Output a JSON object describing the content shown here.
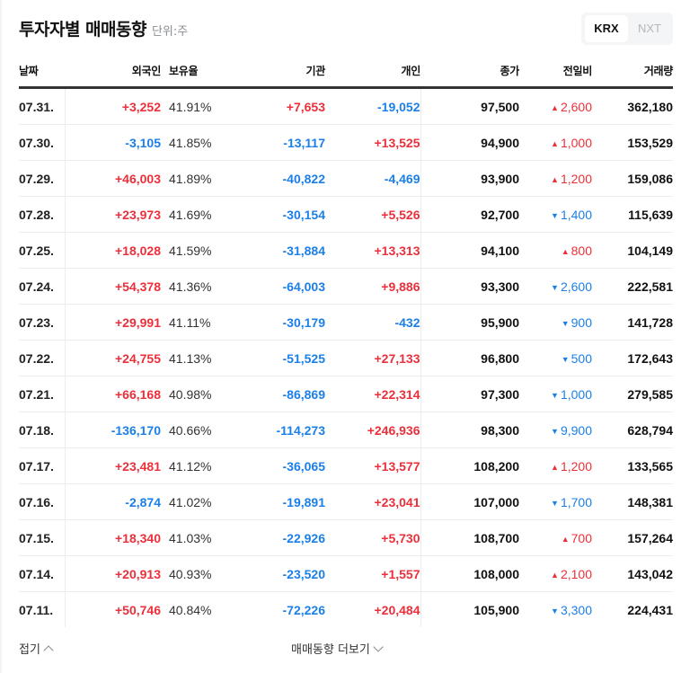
{
  "header": {
    "title": "투자자별 매매동향",
    "unit": "단위:주",
    "toggle": [
      {
        "label": "KRX",
        "active": true
      },
      {
        "label": "NXT",
        "active": false
      }
    ]
  },
  "table": {
    "columns": [
      "날짜",
      "외국인",
      "보유율",
      "기관",
      "개인",
      "종가",
      "전일비",
      "거래량"
    ],
    "rows": [
      {
        "date": "07.31.",
        "foreign": "+3,252",
        "rate": "41.91%",
        "inst": "+7,653",
        "indiv": "-19,052",
        "close": "97,500",
        "dir": "up",
        "change": "2,600",
        "volume": "362,180"
      },
      {
        "date": "07.30.",
        "foreign": "-3,105",
        "rate": "41.85%",
        "inst": "-13,117",
        "indiv": "+13,525",
        "close": "94,900",
        "dir": "up",
        "change": "1,000",
        "volume": "153,529"
      },
      {
        "date": "07.29.",
        "foreign": "+46,003",
        "rate": "41.89%",
        "inst": "-40,822",
        "indiv": "-4,469",
        "close": "93,900",
        "dir": "up",
        "change": "1,200",
        "volume": "159,086"
      },
      {
        "date": "07.28.",
        "foreign": "+23,973",
        "rate": "41.69%",
        "inst": "-30,154",
        "indiv": "+5,526",
        "close": "92,700",
        "dir": "down",
        "change": "1,400",
        "volume": "115,639"
      },
      {
        "date": "07.25.",
        "foreign": "+18,028",
        "rate": "41.59%",
        "inst": "-31,884",
        "indiv": "+13,313",
        "close": "94,100",
        "dir": "up",
        "change": "800",
        "volume": "104,149"
      },
      {
        "date": "07.24.",
        "foreign": "+54,378",
        "rate": "41.36%",
        "inst": "-64,003",
        "indiv": "+9,886",
        "close": "93,300",
        "dir": "down",
        "change": "2,600",
        "volume": "222,581"
      },
      {
        "date": "07.23.",
        "foreign": "+29,991",
        "rate": "41.11%",
        "inst": "-30,179",
        "indiv": "-432",
        "close": "95,900",
        "dir": "down",
        "change": "900",
        "volume": "141,728"
      },
      {
        "date": "07.22.",
        "foreign": "+24,755",
        "rate": "41.13%",
        "inst": "-51,525",
        "indiv": "+27,133",
        "close": "96,800",
        "dir": "down",
        "change": "500",
        "volume": "172,643"
      },
      {
        "date": "07.21.",
        "foreign": "+66,168",
        "rate": "40.98%",
        "inst": "-86,869",
        "indiv": "+22,314",
        "close": "97,300",
        "dir": "down",
        "change": "1,000",
        "volume": "279,585"
      },
      {
        "date": "07.18.",
        "foreign": "-136,170",
        "rate": "40.66%",
        "inst": "-114,273",
        "indiv": "+246,936",
        "close": "98,300",
        "dir": "down",
        "change": "9,900",
        "volume": "628,794"
      },
      {
        "date": "07.17.",
        "foreign": "+23,481",
        "rate": "41.12%",
        "inst": "-36,065",
        "indiv": "+13,577",
        "close": "108,200",
        "dir": "up",
        "change": "1,200",
        "volume": "133,565"
      },
      {
        "date": "07.16.",
        "foreign": "-2,874",
        "rate": "41.02%",
        "inst": "-19,891",
        "indiv": "+23,041",
        "close": "107,000",
        "dir": "down",
        "change": "1,700",
        "volume": "148,381"
      },
      {
        "date": "07.15.",
        "foreign": "+18,340",
        "rate": "41.03%",
        "inst": "-22,926",
        "indiv": "+5,730",
        "close": "108,700",
        "dir": "up",
        "change": "700",
        "volume": "157,264"
      },
      {
        "date": "07.14.",
        "foreign": "+20,913",
        "rate": "40.93%",
        "inst": "-23,520",
        "indiv": "+1,557",
        "close": "108,000",
        "dir": "up",
        "change": "2,100",
        "volume": "143,042"
      },
      {
        "date": "07.11.",
        "foreign": "+50,746",
        "rate": "40.84%",
        "inst": "-72,226",
        "indiv": "+20,484",
        "close": "105,900",
        "dir": "down",
        "change": "3,300",
        "volume": "224,431"
      }
    ]
  },
  "footer": {
    "collapse_label": "접기",
    "more_label": "매매동향 더보기"
  },
  "colors": {
    "up": "#ed2f3a",
    "down": "#1b7fe8",
    "text": "#111111"
  }
}
